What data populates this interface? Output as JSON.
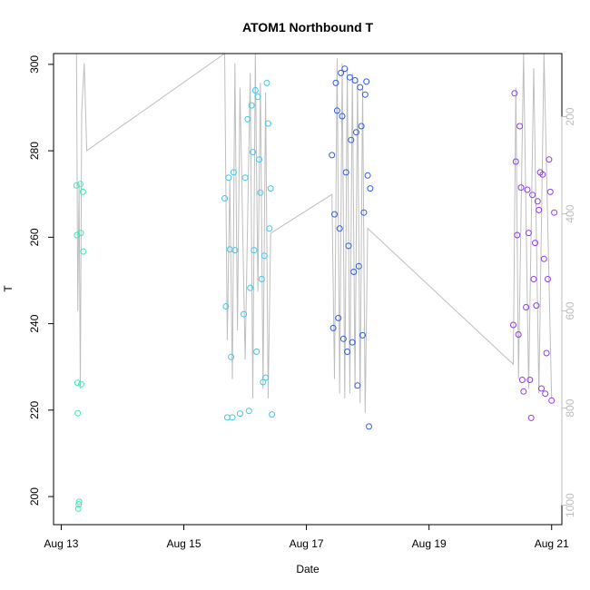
{
  "chart_data": {
    "type": "scatter",
    "title": "ATOM1 Northbound T",
    "xlabel": "Date",
    "ylabel": "T",
    "x_ticks": [
      "Aug 13",
      "Aug 15",
      "Aug 17",
      "Aug 19",
      "Aug 21"
    ],
    "xlim": [
      "Aug 12 21:00",
      "Aug 21 04:00"
    ],
    "ylim": [
      193.5,
      302.5
    ],
    "y_ticks": [
      200,
      220,
      240,
      260,
      280,
      300
    ],
    "right_axis": {
      "ticks": [
        200,
        400,
        600,
        800,
        1000
      ],
      "range": [
        70,
        1040
      ],
      "reversed": true,
      "color": "#bdbdbd"
    },
    "grid": false,
    "colors": {
      "line": "#bebebe",
      "points_by_date": {
        "Aug 13": "#40e8b8",
        "Aug 15": "#40c8ee",
        "Aug 17": "#2f5ce8",
        "Aug 20": "#8f3ce8"
      }
    },
    "track": [
      [
        "Aug 13 06:00",
        70
      ],
      [
        "Aug 13 06:30",
        600
      ],
      [
        "Aug 13 07:00",
        340
      ],
      [
        "Aug 13 07:30",
        760
      ],
      [
        "Aug 13 08:00",
        190
      ],
      [
        "Aug 13 09:00",
        90
      ],
      [
        "Aug 13 10:00",
        270
      ],
      [
        "Aug 15 16:00",
        70
      ],
      [
        "Aug 15 17:00",
        660
      ],
      [
        "Aug 15 18:00",
        330
      ],
      [
        "Aug 15 19:00",
        740
      ],
      [
        "Aug 15 20:00",
        90
      ],
      [
        "Aug 15 21:00",
        640
      ],
      [
        "Aug 15 22:00",
        140
      ],
      [
        "Aug 16 00:00",
        700
      ],
      [
        "Aug 16 02:00",
        110
      ],
      [
        "Aug 16 03:00",
        780
      ],
      [
        "Aug 16 04:00",
        70
      ],
      [
        "Aug 16 05:00",
        560
      ],
      [
        "Aug 16 06:00",
        130
      ],
      [
        "Aug 16 07:00",
        760
      ],
      [
        "Aug 16 08:00",
        150
      ],
      [
        "Aug 16 09:00",
        780
      ],
      [
        "Aug 16 10:00",
        440
      ],
      [
        "Aug 17 10:00",
        360
      ],
      [
        "Aug 17 11:00",
        740
      ],
      [
        "Aug 17 12:00",
        80
      ],
      [
        "Aug 17 13:00",
        770
      ],
      [
        "Aug 17 14:00",
        90
      ],
      [
        "Aug 17 15:00",
        780
      ],
      [
        "Aug 17 16:00",
        100
      ],
      [
        "Aug 17 17:00",
        770
      ],
      [
        "Aug 17 18:00",
        110
      ],
      [
        "Aug 17 19:00",
        760
      ],
      [
        "Aug 17 20:00",
        120
      ],
      [
        "Aug 17 21:00",
        790
      ],
      [
        "Aug 17 22:00",
        140
      ],
      [
        "Aug 17 23:00",
        810
      ],
      [
        "Aug 18 00:00",
        430
      ],
      [
        "Aug 20 09:00",
        710
      ],
      [
        "Aug 20 10:00",
        140
      ],
      [
        "Aug 20 11:00",
        740
      ],
      [
        "Aug 20 13:00",
        70
      ],
      [
        "Aug 20 15:00",
        760
      ],
      [
        "Aug 20 17:00",
        100
      ],
      [
        "Aug 20 19:00",
        770
      ],
      [
        "Aug 20 21:00",
        70
      ],
      [
        "Aug 21 00:00",
        780
      ]
    ],
    "series": [
      {
        "date": "Aug 13",
        "points": [
          [
            "Aug 13 06:00",
            272.0
          ],
          [
            "Aug 13 06:10",
            260.5
          ],
          [
            "Aug 13 06:20",
            226.3
          ],
          [
            "Aug 13 06:30",
            219.3
          ],
          [
            "Aug 13 06:40",
            197.2
          ],
          [
            "Aug 13 06:50",
            198.2
          ],
          [
            "Aug 13 07:00",
            198.8
          ],
          [
            "Aug 13 07:30",
            272.3
          ],
          [
            "Aug 13 07:40",
            261.0
          ],
          [
            "Aug 13 07:50",
            226.0
          ],
          [
            "Aug 13 08:30",
            270.5
          ],
          [
            "Aug 13 08:40",
            256.7
          ]
        ]
      },
      {
        "date": "Aug 15",
        "points": [
          [
            "Aug 15 16:00",
            269.0
          ],
          [
            "Aug 15 16:30",
            244.0
          ],
          [
            "Aug 15 17:00",
            218.3
          ],
          [
            "Aug 15 17:30",
            273.8
          ],
          [
            "Aug 15 18:00",
            257.2
          ],
          [
            "Aug 15 18:30",
            232.3
          ],
          [
            "Aug 15 19:00",
            218.3
          ],
          [
            "Aug 15 19:30",
            275.0
          ],
          [
            "Aug 15 20:00",
            257.0
          ],
          [
            "Aug 15 22:00",
            219.2
          ],
          [
            "Aug 15 23:30",
            242.2
          ],
          [
            "Aug 16 00:00",
            273.8
          ],
          [
            "Aug 16 01:00",
            287.3
          ],
          [
            "Aug 16 01:30",
            219.8
          ],
          [
            "Aug 16 02:00",
            248.3
          ],
          [
            "Aug 16 02:30",
            290.5
          ],
          [
            "Aug 16 03:00",
            279.7
          ],
          [
            "Aug 16 03:30",
            257.0
          ],
          [
            "Aug 16 04:00",
            294.0
          ],
          [
            "Aug 16 04:30",
            233.5
          ],
          [
            "Aug 16 05:00",
            292.5
          ],
          [
            "Aug 16 05:30",
            278.0
          ],
          [
            "Aug 16 06:00",
            270.3
          ],
          [
            "Aug 16 06:30",
            250.3
          ],
          [
            "Aug 16 07:00",
            226.5
          ],
          [
            "Aug 16 07:30",
            255.7
          ],
          [
            "Aug 16 08:00",
            227.5
          ],
          [
            "Aug 16 08:30",
            295.7
          ],
          [
            "Aug 16 09:00",
            286.3
          ],
          [
            "Aug 16 09:30",
            262.0
          ],
          [
            "Aug 16 10:00",
            271.3
          ],
          [
            "Aug 16 10:30",
            219.0
          ]
        ]
      },
      {
        "date": "Aug 17",
        "points": [
          [
            "Aug 17 10:00",
            279.0
          ],
          [
            "Aug 17 10:30",
            239.0
          ],
          [
            "Aug 17 11:00",
            265.3
          ],
          [
            "Aug 17 11:30",
            295.7
          ],
          [
            "Aug 17 12:00",
            289.3
          ],
          [
            "Aug 17 12:30",
            241.3
          ],
          [
            "Aug 17 13:00",
            262.0
          ],
          [
            "Aug 17 13:30",
            298.0
          ],
          [
            "Aug 17 14:00",
            288.0
          ],
          [
            "Aug 17 14:30",
            236.5
          ],
          [
            "Aug 17 15:00",
            299.0
          ],
          [
            "Aug 17 15:30",
            275.0
          ],
          [
            "Aug 17 16:00",
            233.5
          ],
          [
            "Aug 17 16:30",
            258.0
          ],
          [
            "Aug 17 17:00",
            297.0
          ],
          [
            "Aug 17 17:30",
            282.5
          ],
          [
            "Aug 17 18:00",
            235.7
          ],
          [
            "Aug 17 18:30",
            252.0
          ],
          [
            "Aug 17 19:00",
            296.3
          ],
          [
            "Aug 17 19:30",
            284.3
          ],
          [
            "Aug 17 20:00",
            225.7
          ],
          [
            "Aug 17 20:30",
            253.3
          ],
          [
            "Aug 17 21:00",
            294.7
          ],
          [
            "Aug 17 21:30",
            285.7
          ],
          [
            "Aug 17 22:00",
            237.3
          ],
          [
            "Aug 17 22:30",
            265.7
          ],
          [
            "Aug 17 23:00",
            293.0
          ],
          [
            "Aug 17 23:30",
            296.0
          ],
          [
            "Aug 18 00:00",
            274.3
          ],
          [
            "Aug 18 00:30",
            216.2
          ],
          [
            "Aug 18 01:00",
            271.3
          ]
        ]
      },
      {
        "date": "Aug 20",
        "points": [
          [
            "Aug 20 09:00",
            239.7
          ],
          [
            "Aug 20 09:30",
            293.3
          ],
          [
            "Aug 20 10:00",
            277.5
          ],
          [
            "Aug 20 10:30",
            260.5
          ],
          [
            "Aug 20 11:00",
            237.5
          ],
          [
            "Aug 20 11:30",
            285.7
          ],
          [
            "Aug 20 12:00",
            271.5
          ],
          [
            "Aug 20 12:30",
            227.0
          ],
          [
            "Aug 20 13:00",
            224.3
          ],
          [
            "Aug 20 14:00",
            243.8
          ],
          [
            "Aug 20 14:30",
            271.0
          ],
          [
            "Aug 20 15:00",
            261.0
          ],
          [
            "Aug 20 15:30",
            227.0
          ],
          [
            "Aug 20 16:00",
            218.2
          ],
          [
            "Aug 20 16:30",
            269.8
          ],
          [
            "Aug 20 17:00",
            250.3
          ],
          [
            "Aug 20 17:30",
            258.7
          ],
          [
            "Aug 20 18:00",
            244.2
          ],
          [
            "Aug 20 18:30",
            268.3
          ],
          [
            "Aug 20 19:00",
            266.3
          ],
          [
            "Aug 20 19:30",
            275.0
          ],
          [
            "Aug 20 20:00",
            225.0
          ],
          [
            "Aug 20 20:30",
            274.5
          ],
          [
            "Aug 20 21:00",
            255.0
          ],
          [
            "Aug 20 21:30",
            223.8
          ],
          [
            "Aug 20 22:00",
            233.2
          ],
          [
            "Aug 20 22:30",
            250.3
          ],
          [
            "Aug 20 23:00",
            278.0
          ],
          [
            "Aug 20 23:30",
            270.5
          ],
          [
            "Aug 21 00:00",
            222.2
          ],
          [
            "Aug 21 01:00",
            265.7
          ]
        ]
      }
    ]
  }
}
